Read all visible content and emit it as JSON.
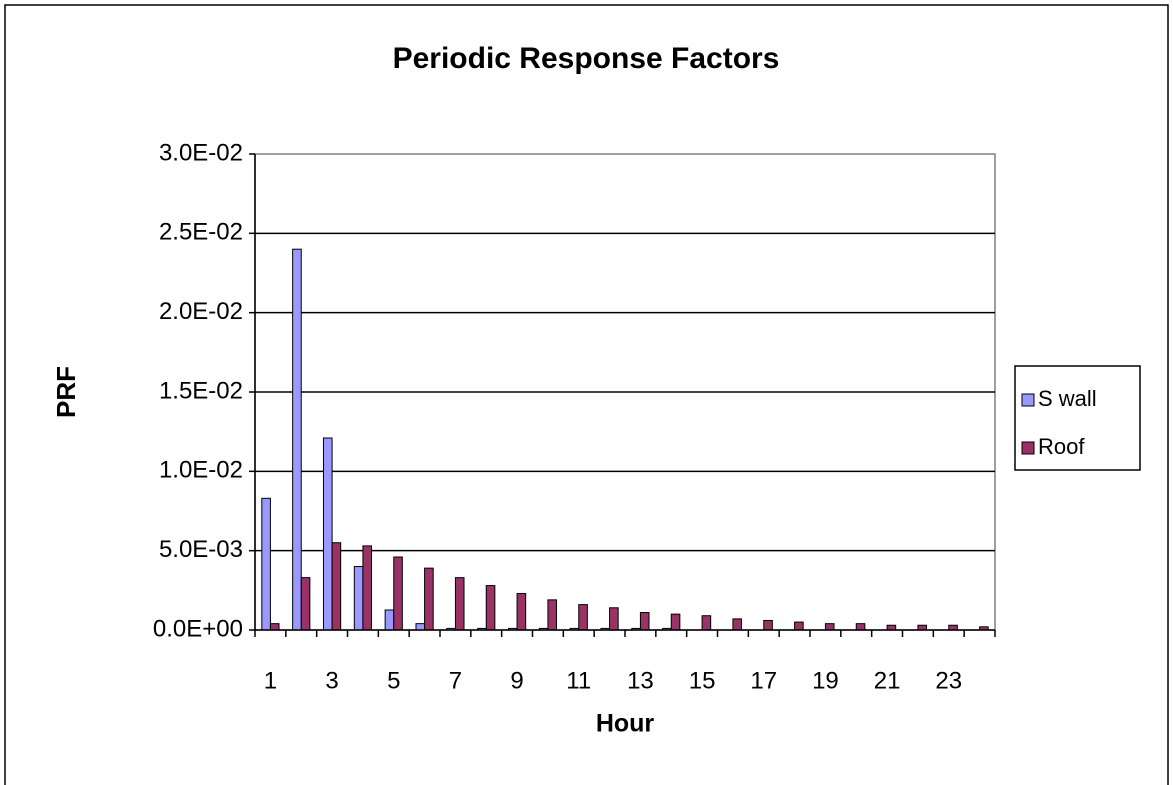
{
  "chart_data": {
    "type": "bar",
    "title": "Periodic Response Factors",
    "x_label": "Hour",
    "y_label": "PRF",
    "categories": [
      1,
      null,
      3,
      null,
      5,
      null,
      7,
      null,
      9,
      null,
      11,
      null,
      13,
      null,
      15,
      null,
      17,
      null,
      19,
      null,
      21,
      null,
      23,
      null
    ],
    "series": [
      {
        "name": "S wall",
        "color": "#9999ff",
        "values": [
          0.0083,
          0.024,
          0.0121,
          0.004,
          0.00126,
          0.0004,
          0.0001,
          0.0001,
          0.0001,
          0.0001,
          0.0001,
          0.0001,
          0.0001,
          0.0001,
          0,
          0,
          0,
          0,
          0,
          0,
          0,
          0,
          0,
          0
        ]
      },
      {
        "name": "Roof",
        "color": "#993366",
        "values": [
          0.0004,
          0.0033,
          0.0055,
          0.0053,
          0.0046,
          0.0039,
          0.0033,
          0.0028,
          0.0023,
          0.0019,
          0.0016,
          0.0014,
          0.0011,
          0.001,
          0.0009,
          0.0007,
          0.0006,
          0.0005,
          0.0004,
          0.0004,
          0.0003,
          0.0003,
          0.0003,
          0.0002
        ]
      }
    ],
    "ylim": [
      0,
      0.03
    ],
    "yticks": [
      {
        "value": 0,
        "label": "0.0E+00"
      },
      {
        "value": 0.005,
        "label": "5.0E-03"
      },
      {
        "value": 0.01,
        "label": "1.0E-02"
      },
      {
        "value": 0.015,
        "label": "1.5E-02"
      },
      {
        "value": 0.02,
        "label": "2.0E-02"
      },
      {
        "value": 0.025,
        "label": "2.5E-02"
      },
      {
        "value": 0.03,
        "label": "3.0E-02"
      }
    ],
    "grid": true,
    "legend": "right"
  }
}
